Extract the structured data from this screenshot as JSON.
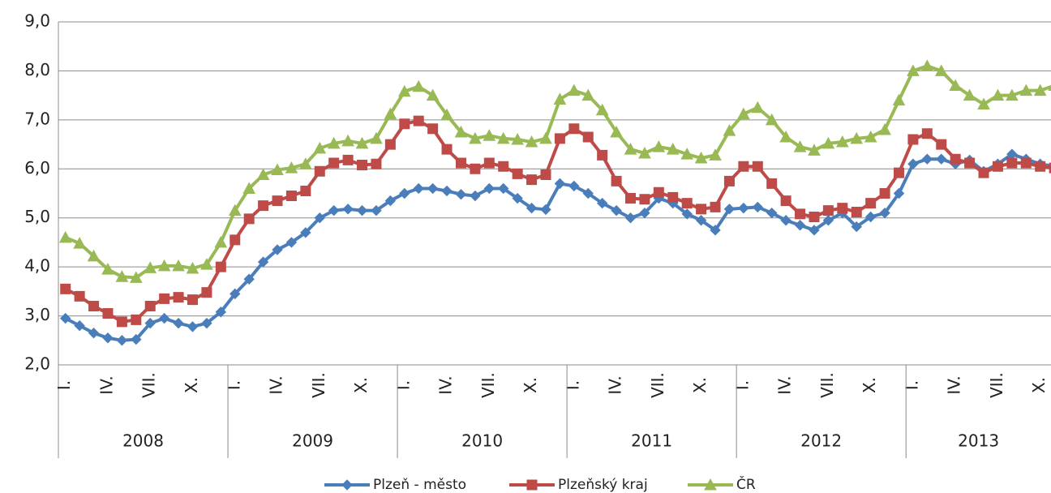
{
  "chart_data": {
    "type": "line",
    "categories": [
      "I.",
      null,
      null,
      "IV.",
      null,
      null,
      "VII.",
      null,
      null,
      "X.",
      null,
      null,
      "I.",
      null,
      null,
      "IV.",
      null,
      null,
      "VII.",
      null,
      null,
      "X.",
      null,
      null,
      "I.",
      null,
      null,
      "IV.",
      null,
      null,
      "VII.",
      null,
      null,
      "X.",
      null,
      null,
      "I.",
      null,
      null,
      "IV.",
      null,
      null,
      "VII.",
      null,
      null,
      "X.",
      null,
      null,
      "I.",
      null,
      null,
      "IV.",
      null,
      null,
      "VII.",
      null,
      null,
      "X.",
      null,
      null,
      "I.",
      null,
      null,
      "IV.",
      null,
      null,
      "VII.",
      null,
      null,
      "X.",
      null
    ],
    "years": [
      "2008",
      "2009",
      "2010",
      "2011",
      "2012",
      "2013"
    ],
    "series": [
      {
        "name": "Plzeň - město",
        "color": "#4a7ebb",
        "marker": "diamond",
        "values": [
          2.95,
          2.8,
          2.65,
          2.55,
          2.5,
          2.52,
          2.85,
          2.95,
          2.85,
          2.78,
          2.85,
          3.08,
          3.45,
          3.75,
          4.1,
          4.35,
          4.5,
          4.7,
          5.0,
          5.15,
          5.18,
          5.15,
          5.15,
          5.35,
          5.5,
          5.6,
          5.6,
          5.55,
          5.48,
          5.45,
          5.6,
          5.6,
          5.4,
          5.2,
          5.17,
          5.7,
          5.65,
          5.5,
          5.3,
          5.15,
          5.0,
          5.1,
          5.4,
          5.3,
          5.08,
          4.95,
          4.75,
          5.18,
          5.2,
          5.22,
          5.1,
          4.95,
          4.85,
          4.75,
          4.95,
          5.1,
          4.82,
          5.02,
          5.1,
          5.5,
          6.1,
          6.2,
          6.2,
          6.1,
          6.18,
          5.95,
          6.1,
          6.3,
          6.2,
          6.1,
          6.05
        ]
      },
      {
        "name": "Plzeňský kraj",
        "color": "#be4b48",
        "marker": "square",
        "values": [
          3.55,
          3.4,
          3.2,
          3.05,
          2.88,
          2.92,
          3.2,
          3.35,
          3.38,
          3.33,
          3.48,
          4.0,
          4.55,
          4.98,
          5.25,
          5.35,
          5.45,
          5.55,
          5.95,
          6.12,
          6.18,
          6.08,
          6.1,
          6.5,
          6.92,
          6.98,
          6.82,
          6.4,
          6.12,
          6.0,
          6.12,
          6.05,
          5.9,
          5.78,
          5.88,
          6.62,
          6.82,
          6.65,
          6.28,
          5.75,
          5.4,
          5.38,
          5.52,
          5.42,
          5.3,
          5.18,
          5.22,
          5.75,
          6.05,
          6.05,
          5.7,
          5.35,
          5.08,
          5.02,
          5.15,
          5.2,
          5.12,
          5.3,
          5.5,
          5.92,
          6.6,
          6.72,
          6.5,
          6.2,
          6.12,
          5.92,
          6.05,
          6.12,
          6.12,
          6.05,
          6.02
        ]
      },
      {
        "name": "ČR",
        "color": "#98b954",
        "marker": "triangle",
        "values": [
          4.6,
          4.48,
          4.22,
          3.95,
          3.8,
          3.78,
          3.98,
          4.02,
          4.02,
          3.97,
          4.05,
          4.5,
          5.15,
          5.6,
          5.88,
          5.98,
          6.02,
          6.1,
          6.42,
          6.52,
          6.57,
          6.52,
          6.62,
          7.12,
          7.58,
          7.68,
          7.5,
          7.1,
          6.75,
          6.62,
          6.68,
          6.62,
          6.6,
          6.55,
          6.62,
          7.42,
          7.6,
          7.5,
          7.2,
          6.75,
          6.4,
          6.32,
          6.45,
          6.4,
          6.3,
          6.22,
          6.28,
          6.78,
          7.12,
          7.25,
          7.0,
          6.65,
          6.45,
          6.38,
          6.52,
          6.55,
          6.62,
          6.65,
          6.8,
          7.4,
          8.0,
          8.1,
          8.0,
          7.7,
          7.5,
          7.32,
          7.5,
          7.5,
          7.6,
          7.6,
          7.7
        ]
      }
    ],
    "ylim": [
      2,
      9
    ],
    "yticks": [
      {
        "value": 2,
        "label": "2,0"
      },
      {
        "value": 3,
        "label": "3,0"
      },
      {
        "value": 4,
        "label": "4,0"
      },
      {
        "value": 5,
        "label": "5,0"
      },
      {
        "value": 6,
        "label": "6,0"
      },
      {
        "value": 7,
        "label": "7,0"
      },
      {
        "value": 8,
        "label": "8,0"
      },
      {
        "value": 9,
        "label": "9,0"
      }
    ],
    "grid": true,
    "legend": "bottom"
  }
}
